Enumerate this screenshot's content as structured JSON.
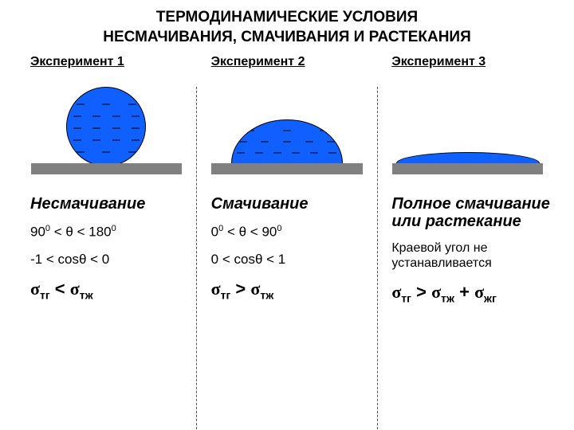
{
  "title_line1": "ТЕРМОДИНАМИЧЕСКИЕ УСЛОВИЯ",
  "title_line2": "НЕСМАЧИВАНИЯ, СМАЧИВАНИЯ И РАСТЕКАНИЯ",
  "colors": {
    "drop_fill": "#1060ff",
    "dash_color": "#003080",
    "surface": "#808080",
    "background": "#ffffff",
    "text": "#000000"
  },
  "diagram": {
    "type": "infographic",
    "columns": 3,
    "drop_shapes": [
      "full-circle",
      "half-dome",
      "flat-film"
    ]
  },
  "experiments": [
    {
      "header": "Эксперимент 1",
      "label": "Несмачивание",
      "angle_html": "90<sup>0</sup> < θ < 180<sup>0</sup>",
      "cos_html": "-1 < cosθ < 0",
      "sigma_html": "<span class='sym'>σ</span><span class='sub'>тг</span> &lt; <span class='sym'>σ</span><span class='sub'>тж</span>"
    },
    {
      "header": "Эксперимент 2",
      "label": "Смачивание",
      "angle_html": "0<sup>0</sup> < θ < 90<sup>0</sup>",
      "cos_html": "0 < cosθ < 1",
      "sigma_html": "<span class='sym'>σ</span><span class='sub'>тг</span> &gt; <span class='sym'>σ</span><span class='sub'>тж</span>"
    },
    {
      "header": "Эксперимент 3",
      "label": "Полное смачивание или растекание",
      "note": "Краевой угол не устанавливается",
      "sigma_html": "<span class='sym'>σ</span><span class='sub'>тг</span> &gt; <span class='sym'>σ</span><span class='sub'>тж</span> + <span class='sym'>σ</span><span class='sub'>жг</span>"
    }
  ]
}
